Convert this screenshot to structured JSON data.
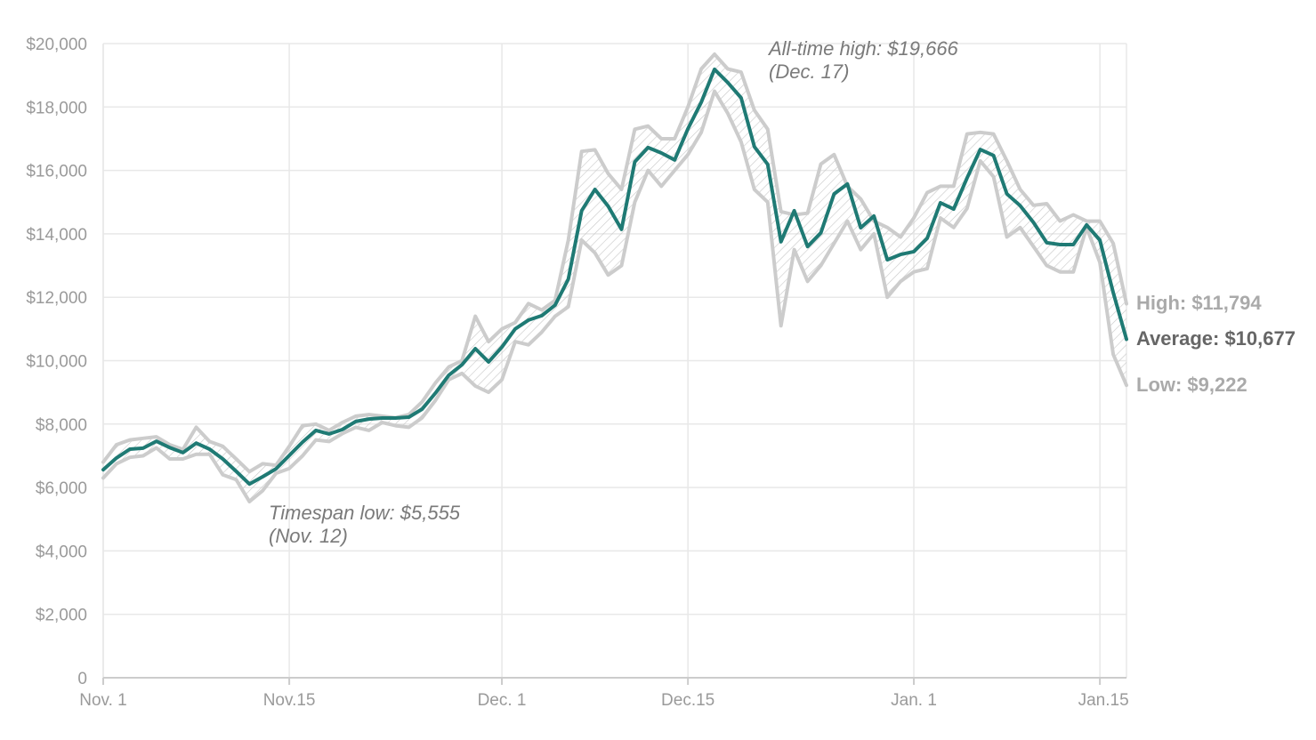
{
  "chart_data": {
    "type": "line",
    "title": "",
    "xlabel": "",
    "ylabel": "",
    "ylim": [
      0,
      20000
    ],
    "yticks": [
      "0",
      "$2,000",
      "$4,000",
      "$6,000",
      "$8,000",
      "$10,000",
      "$12,000",
      "$14,000",
      "$16,000",
      "$18,000",
      "$20,000"
    ],
    "ytick_values": [
      0,
      2000,
      4000,
      6000,
      8000,
      10000,
      12000,
      14000,
      16000,
      18000,
      20000
    ],
    "xticks": [
      {
        "label": "Nov. 1",
        "date": "Nov 1"
      },
      {
        "label": "Nov.15",
        "date": "Nov 15"
      },
      {
        "label": "Dec. 1",
        "date": "Dec 1"
      },
      {
        "label": "Dec.15",
        "date": "Dec 15"
      },
      {
        "label": "Jan. 1",
        "date": "Jan 1"
      },
      {
        "label": "Jan.15",
        "date": "Jan 15"
      }
    ],
    "grid": true,
    "x": [
      "Nov 1",
      "Nov 2",
      "Nov 3",
      "Nov 4",
      "Nov 5",
      "Nov 6",
      "Nov 7",
      "Nov 8",
      "Nov 9",
      "Nov 10",
      "Nov 11",
      "Nov 12",
      "Nov 13",
      "Nov 14",
      "Nov 15",
      "Nov 16",
      "Nov 17",
      "Nov 18",
      "Nov 19",
      "Nov 20",
      "Nov 21",
      "Nov 22",
      "Nov 23",
      "Nov 24",
      "Nov 25",
      "Nov 26",
      "Nov 27",
      "Nov 28",
      "Nov 29",
      "Nov 30",
      "Dec 1",
      "Dec 2",
      "Dec 3",
      "Dec 4",
      "Dec 5",
      "Dec 6",
      "Dec 7",
      "Dec 8",
      "Dec 9",
      "Dec 10",
      "Dec 11",
      "Dec 12",
      "Dec 13",
      "Dec 14",
      "Dec 15",
      "Dec 16",
      "Dec 17",
      "Dec 18",
      "Dec 19",
      "Dec 20",
      "Dec 21",
      "Dec 22",
      "Dec 23",
      "Dec 24",
      "Dec 25",
      "Dec 26",
      "Dec 27",
      "Dec 28",
      "Dec 29",
      "Dec 30",
      "Dec 31",
      "Jan 1",
      "Jan 2",
      "Jan 3",
      "Jan 4",
      "Jan 5",
      "Jan 6",
      "Jan 7",
      "Jan 8",
      "Jan 9",
      "Jan 10",
      "Jan 11",
      "Jan 12",
      "Jan 13",
      "Jan 14",
      "Jan 15",
      "Jan 16",
      "Jan 17"
    ],
    "series": [
      {
        "key": "high",
        "color": "#cccccc",
        "values": [
          6800,
          7350,
          7500,
          7550,
          7600,
          7350,
          7200,
          7900,
          7450,
          7300,
          6900,
          6500,
          6750,
          6700,
          7300,
          7950,
          8000,
          7800,
          8050,
          8250,
          8300,
          8250,
          8200,
          8300,
          8700,
          9300,
          9800,
          10000,
          11400,
          10600,
          11000,
          11200,
          11800,
          11600,
          11900,
          13800,
          16600,
          16650,
          15900,
          15400,
          17300,
          17400,
          17000,
          17000,
          18000,
          19200,
          19666,
          19200,
          19100,
          17900,
          17300,
          14700,
          14600,
          14650,
          16200,
          16500,
          15500,
          15100,
          14400,
          14200,
          13900,
          14500,
          15300,
          15500,
          15500,
          17150,
          17200,
          17150,
          16300,
          15400,
          14900,
          14950,
          14400,
          14600,
          14400,
          14400,
          13700,
          11794
        ]
      },
      {
        "key": "low",
        "color": "#cccccc",
        "values": [
          6300,
          6750,
          6950,
          7000,
          7250,
          6900,
          6900,
          7050,
          7050,
          6400,
          6250,
          5555,
          5900,
          6450,
          6600,
          7000,
          7500,
          7450,
          7700,
          7900,
          7800,
          8050,
          7950,
          7900,
          8200,
          8750,
          9400,
          9600,
          9200,
          9000,
          9400,
          10600,
          10500,
          10900,
          11400,
          11700,
          13800,
          13400,
          12700,
          13000,
          15000,
          16000,
          15500,
          16000,
          16500,
          17200,
          18500,
          17800,
          16900,
          15400,
          15000,
          11100,
          13500,
          12500,
          13000,
          13700,
          14400,
          13500,
          14000,
          12000,
          12500,
          12800,
          12900,
          14500,
          14200,
          14800,
          16300,
          15800,
          13900,
          14200,
          13600,
          13000,
          12800,
          12800,
          14200,
          13100,
          10200,
          9222
        ]
      },
      {
        "key": "average",
        "color": "#1f7a74",
        "values": [
          6560,
          6930,
          7210,
          7240,
          7460,
          7260,
          7100,
          7400,
          7210,
          6900,
          6510,
          6110,
          6340,
          6590,
          7010,
          7430,
          7800,
          7690,
          7830,
          8080,
          8160,
          8190,
          8190,
          8220,
          8470,
          8980,
          9540,
          9870,
          10380,
          9960,
          10430,
          11000,
          11280,
          11420,
          11750,
          12570,
          14730,
          15400,
          14870,
          14140,
          16270,
          16720,
          16550,
          16330,
          17310,
          18150,
          19190,
          18770,
          18290,
          16750,
          16190,
          13750,
          14730,
          13600,
          14030,
          15260,
          15570,
          14190,
          14560,
          13180,
          13350,
          13440,
          13860,
          14980,
          14780,
          15760,
          16660,
          16470,
          15260,
          14890,
          14360,
          13720,
          13660,
          13660,
          14280,
          13800,
          12150,
          10677
        ]
      }
    ],
    "annotations": {
      "high_line1": "All-time high: $19,666",
      "high_line2": "(Dec. 17)",
      "low_line1": "Timespan low: $5,555",
      "low_line2": "(Nov. 12)"
    },
    "end_labels": {
      "high": "High: $11,794",
      "average": "Average: $10,677",
      "low": "Low: $9,222"
    },
    "colors": {
      "grid": "#e8e8e8",
      "band_line": "#cccccc",
      "hatch": "#c8c8c8",
      "average": "#1f7a74",
      "high_low_label": "#aaaaaa",
      "average_label": "#666666"
    }
  }
}
